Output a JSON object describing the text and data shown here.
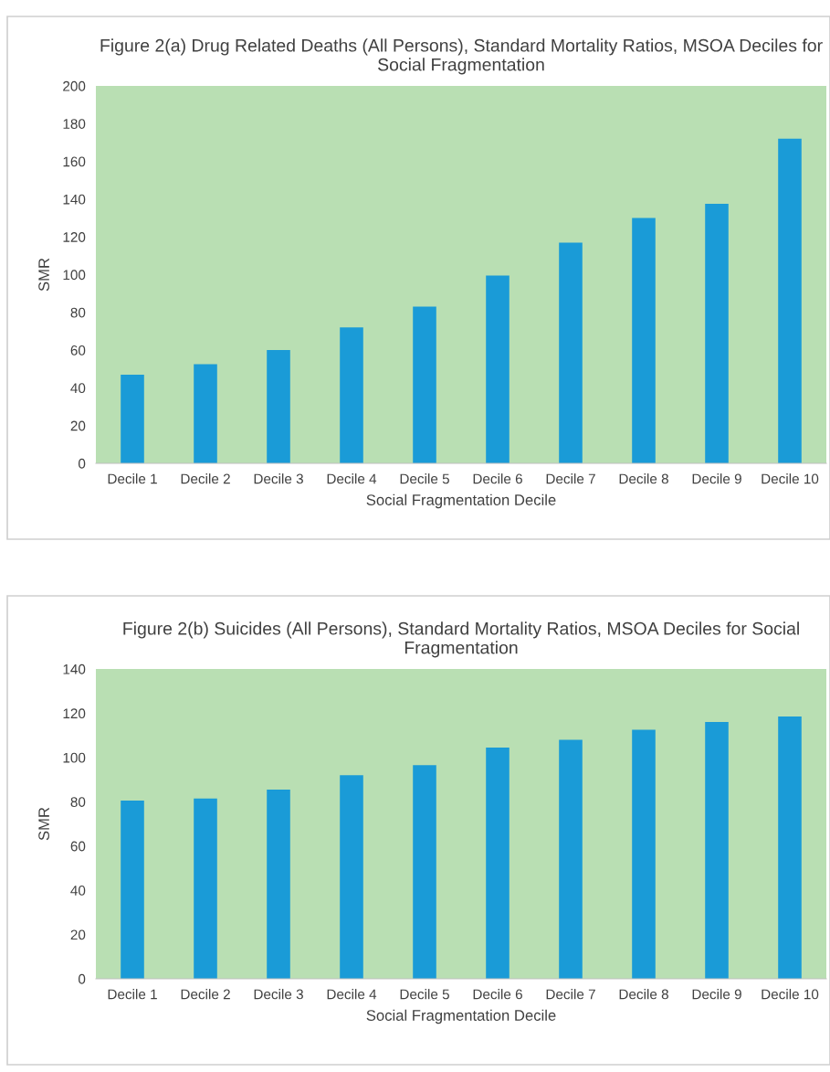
{
  "chart_data": [
    {
      "type": "bar",
      "title": "Figure 2(a) Drug Related Deaths (All Persons), Standard Mortality Ratios, MSOA Deciles for Social Fragmentation",
      "xlabel": "Social Fragmentation Decile",
      "ylabel": "SMR",
      "categories": [
        "Decile 1",
        "Decile 2",
        "Decile 3",
        "Decile 4",
        "Decile 5",
        "Decile 6",
        "Decile 7",
        "Decile 8",
        "Decile 9",
        "Decile 10"
      ],
      "values": [
        47,
        52.5,
        60,
        72,
        83,
        99.5,
        117,
        130,
        137.5,
        172
      ],
      "color": "#1a9bd7",
      "ylim": [
        0,
        200
      ],
      "yticks": [
        0,
        20,
        40,
        60,
        80,
        100,
        120,
        140,
        160,
        180,
        200
      ],
      "grid": false,
      "legend": false
    },
    {
      "type": "bar",
      "title": "Figure 2(b) Suicides (All Persons), Standard Mortality Ratios, MSOA Deciles for Social Fragmentation",
      "xlabel": "Social Fragmentation Decile",
      "ylabel": "SMR",
      "categories": [
        "Decile 1",
        "Decile 2",
        "Decile 3",
        "Decile 4",
        "Decile 5",
        "Decile 6",
        "Decile 7",
        "Decile 8",
        "Decile 9",
        "Decile 10"
      ],
      "values": [
        80.5,
        81.5,
        85.5,
        92,
        96.5,
        104.5,
        108,
        112.5,
        116,
        118.5
      ],
      "color": "#1a9bd7",
      "ylim": [
        0,
        140
      ],
      "yticks": [
        0,
        20,
        40,
        60,
        80,
        100,
        120,
        140
      ],
      "grid": false,
      "legend": false
    }
  ]
}
